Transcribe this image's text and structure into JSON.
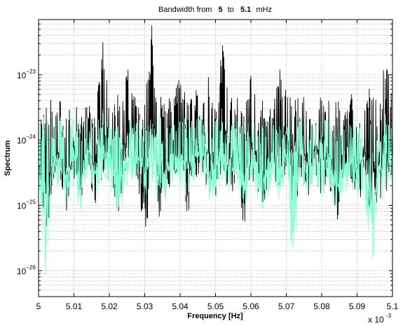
{
  "chart_data": {
    "type": "line",
    "title_parts": {
      "prefix": "Bandwidth from",
      "from": "5",
      "to_word": "to",
      "to": "5.1",
      "unit": "mHz"
    },
    "xlabel": "Frequency [Hz]",
    "ylabel": "Spectrum",
    "x_multiplier_label": "x 10",
    "x_multiplier_exp": "-3",
    "xlim": [
      0.005,
      0.0051
    ],
    "ylim": [
      4e-27,
      7e-23
    ],
    "yscale": "log",
    "grid": true,
    "x_ticks": [
      {
        "value": 0.005,
        "label": "5"
      },
      {
        "value": 0.00501,
        "label": "5.01"
      },
      {
        "value": 0.00502,
        "label": "5.02"
      },
      {
        "value": 0.00503,
        "label": "5.03"
      },
      {
        "value": 0.00504,
        "label": "5.04"
      },
      {
        "value": 0.00505,
        "label": "5.05"
      },
      {
        "value": 0.00506,
        "label": "5.06"
      },
      {
        "value": 0.00507,
        "label": "5.07"
      },
      {
        "value": 0.00508,
        "label": "5.08"
      },
      {
        "value": 0.00509,
        "label": "5.09"
      },
      {
        "value": 0.0051,
        "label": "5.1"
      }
    ],
    "y_ticks": [
      {
        "value": 1e-26,
        "base": "10",
        "exp": "−26"
      },
      {
        "value": 1e-25,
        "base": "10",
        "exp": "−25"
      },
      {
        "value": 1e-24,
        "base": "10",
        "exp": "−24"
      },
      {
        "value": 1e-23,
        "base": "10",
        "exp": "−23"
      }
    ],
    "series": [
      {
        "color": "#000000",
        "description_level": "upper envelope",
        "x": [
          0.005,
          0.005002,
          0.005004,
          0.005006,
          0.005008,
          0.00501,
          0.005012,
          0.005014,
          0.005016,
          0.005018,
          0.00502,
          0.005022,
          0.005024,
          0.005026,
          0.005028,
          0.00503,
          0.005032,
          0.005034,
          0.005036,
          0.005038,
          0.00504,
          0.005042,
          0.005044,
          0.005046,
          0.005048,
          0.00505,
          0.005052,
          0.005054,
          0.005056,
          0.005058,
          0.00506,
          0.005062,
          0.005064,
          0.005066,
          0.005068,
          0.00507,
          0.005072,
          0.005074,
          0.005076,
          0.005078,
          0.00508,
          0.005082,
          0.005084,
          0.005086,
          0.005088,
          0.00509,
          0.005092,
          0.005094,
          0.005096,
          0.005098,
          0.0051
        ],
        "y": [
          2.5e-24,
          3e-24,
          5e-24,
          4e-24,
          3e-24,
          6e-24,
          2.5e-24,
          5e-24,
          3.5e-24,
          4e-23,
          4e-24,
          4.5e-24,
          8e-24,
          1.5e-23,
          4e-24,
          5e-24,
          6.5e-23,
          5e-24,
          5e-24,
          4e-24,
          1.5e-23,
          4e-24,
          8e-24,
          4e-24,
          1.2e-23,
          3e-24,
          3.5e-23,
          6e-24,
          5e-24,
          3e-24,
          1.5e-23,
          3e-24,
          5e-24,
          3e-24,
          1.5e-23,
          8e-24,
          4e-24,
          6e-24,
          4e-24,
          3e-24,
          1.5e-23,
          4e-24,
          5e-24,
          3e-24,
          8e-24,
          3e-24,
          4e-24,
          8e-24,
          3e-24,
          2e-23,
          5e-24
        ]
      },
      {
        "color": "#000000",
        "description_level": "lower envelope",
        "x": [
          0.005,
          0.005002,
          0.005004,
          0.005006,
          0.005008,
          0.00501,
          0.005012,
          0.005014,
          0.005016,
          0.005018,
          0.00502,
          0.005022,
          0.005024,
          0.005026,
          0.005028,
          0.00503,
          0.005032,
          0.005034,
          0.005036,
          0.005038,
          0.00504,
          0.005042,
          0.005044,
          0.005046,
          0.005048,
          0.00505,
          0.005052,
          0.005054,
          0.005056,
          0.005058,
          0.00506,
          0.005062,
          0.005064,
          0.005066,
          0.005068,
          0.00507,
          0.005072,
          0.005074,
          0.005076,
          0.005078,
          0.00508,
          0.005082,
          0.005084,
          0.005086,
          0.005088,
          0.00509,
          0.005092,
          0.005094,
          0.005096,
          0.005098,
          0.0051
        ],
        "y": [
          2e-25,
          3e-26,
          1e-25,
          2e-25,
          5e-26,
          2e-25,
          1e-25,
          3e-25,
          8e-26,
          2e-25,
          3e-25,
          5e-26,
          1e-25,
          3e-25,
          2e-25,
          1e-26,
          3e-25,
          5e-26,
          1e-25,
          2e-25,
          3e-25,
          5e-26,
          2e-25,
          3e-25,
          1e-25,
          1e-25,
          3e-25,
          1e-25,
          2e-25,
          3e-26,
          2e-25,
          1e-25,
          8e-26,
          2e-25,
          1e-25,
          3e-25,
          5e-26,
          2e-25,
          1e-25,
          3e-25,
          1e-25,
          2e-25,
          3e-26,
          1e-25,
          2e-25,
          5e-26,
          2e-25,
          3e-26,
          1e-25,
          1e-25,
          2e-25
        ]
      },
      {
        "color": "#7fffd4",
        "description_level": "upper envelope",
        "x": [
          0.005,
          0.005002,
          0.005004,
          0.005006,
          0.005008,
          0.00501,
          0.005012,
          0.005014,
          0.005016,
          0.005018,
          0.00502,
          0.005022,
          0.005024,
          0.005026,
          0.005028,
          0.00503,
          0.005032,
          0.005034,
          0.005036,
          0.005038,
          0.00504,
          0.005042,
          0.005044,
          0.005046,
          0.005048,
          0.00505,
          0.005052,
          0.005054,
          0.005056,
          0.005058,
          0.00506,
          0.005062,
          0.005064,
          0.005066,
          0.005068,
          0.00507,
          0.005072,
          0.005074,
          0.005076,
          0.005078,
          0.00508,
          0.005082,
          0.005084,
          0.005086,
          0.005088,
          0.00509,
          0.005092,
          0.005094,
          0.005096,
          0.005098,
          0.0051
        ],
        "y": [
          2e-24,
          3e-24,
          2e-24,
          2.5e-24,
          1.5e-24,
          3e-24,
          2e-24,
          2.5e-24,
          1.8e-24,
          3e-24,
          2e-24,
          2.5e-24,
          1.5e-24,
          3e-24,
          2e-24,
          2.5e-24,
          2e-24,
          3e-24,
          1.5e-24,
          2.5e-24,
          2e-24,
          3e-24,
          2e-24,
          2.5e-24,
          1.5e-24,
          3e-24,
          2e-24,
          2.5e-24,
          2e-24,
          3e-24,
          1.5e-24,
          2.5e-24,
          2e-24,
          3e-24,
          2e-24,
          2.5e-24,
          1.5e-24,
          3e-24,
          2e-24,
          2.5e-24,
          2e-24,
          3e-24,
          1.5e-24,
          2.5e-24,
          2e-24,
          3e-24,
          2e-24,
          2.5e-24,
          1.5e-24,
          3e-24,
          2e-24
        ]
      },
      {
        "color": "#7fffd4",
        "description_level": "lower envelope",
        "x": [
          0.005,
          0.005002,
          0.005004,
          0.005006,
          0.005008,
          0.00501,
          0.005012,
          0.005014,
          0.005016,
          0.005018,
          0.00502,
          0.005022,
          0.005024,
          0.005026,
          0.005028,
          0.00503,
          0.005032,
          0.005034,
          0.005036,
          0.005038,
          0.00504,
          0.005042,
          0.005044,
          0.005046,
          0.005048,
          0.00505,
          0.005052,
          0.005054,
          0.005056,
          0.005058,
          0.00506,
          0.005062,
          0.005064,
          0.005066,
          0.005068,
          0.00507,
          0.005072,
          0.005074,
          0.005076,
          0.005078,
          0.00508,
          0.005082,
          0.005084,
          0.005086,
          0.005088,
          0.00509,
          0.005092,
          0.005094,
          0.005096,
          0.005098,
          0.0051
        ],
        "y": [
          1.5e-25,
          5e-27,
          1e-25,
          2e-25,
          8e-26,
          2e-25,
          5e-26,
          3e-25,
          1e-25,
          2e-25,
          2e-25,
          6e-26,
          1e-25,
          2e-25,
          2e-25,
          8e-26,
          2e-25,
          6e-26,
          1e-25,
          2e-25,
          2e-25,
          8e-26,
          2e-25,
          2e-25,
          1e-25,
          1e-25,
          2e-25,
          1e-25,
          2e-25,
          5e-26,
          2e-25,
          1e-25,
          6e-26,
          2e-25,
          1e-25,
          2e-25,
          5e-27,
          2e-25,
          1e-25,
          2e-25,
          1e-25,
          2e-25,
          4e-26,
          1e-25,
          2e-25,
          6e-26,
          2e-25,
          5e-27,
          1e-25,
          1e-25,
          2e-25
        ]
      }
    ]
  }
}
